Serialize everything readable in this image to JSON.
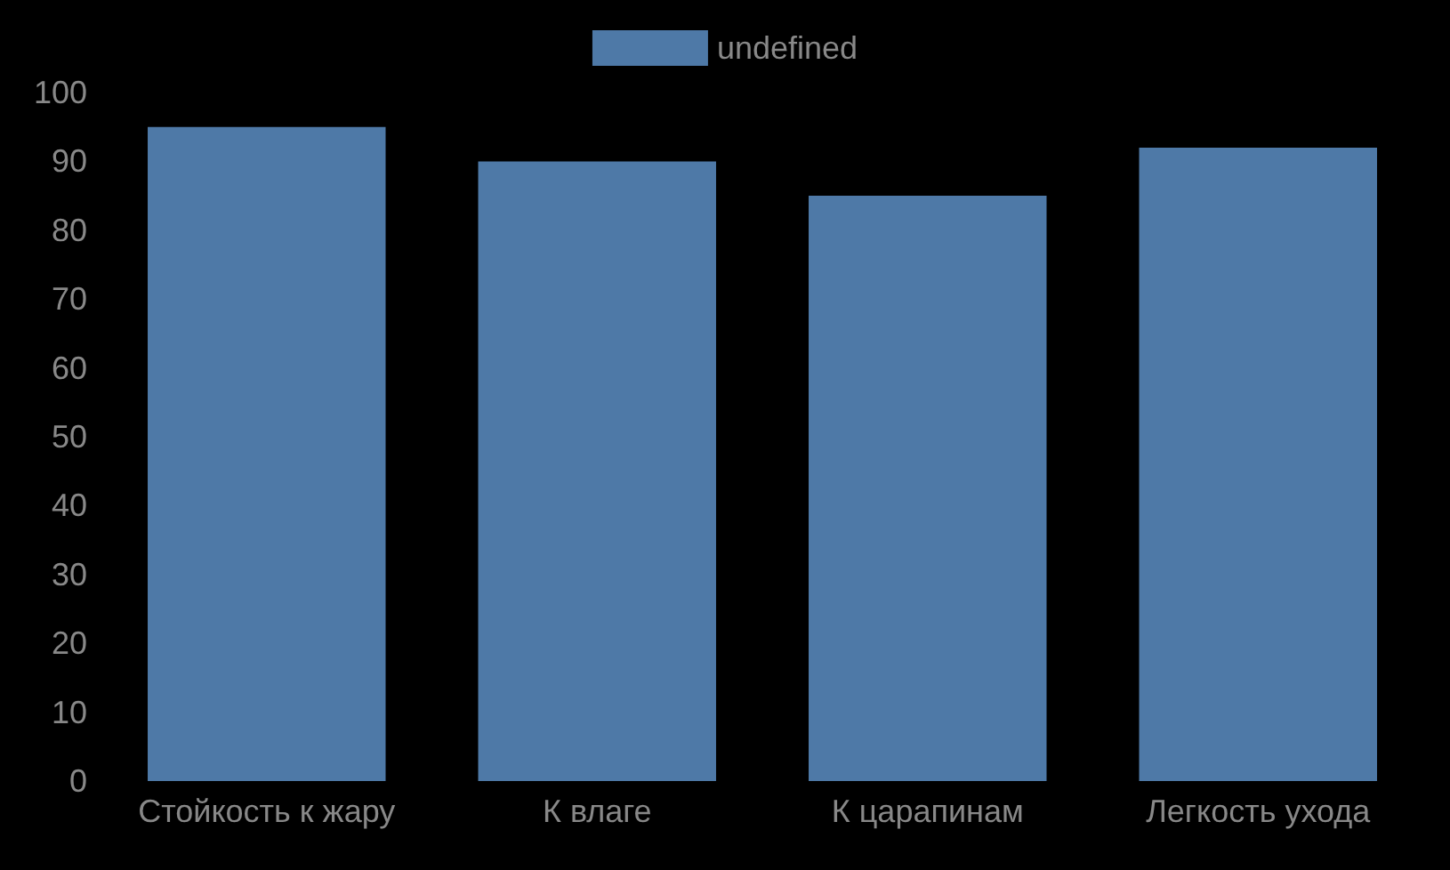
{
  "chart_data": {
    "type": "bar",
    "categories": [
      "Стойкость к жару",
      "К влаге",
      "К царапинам",
      "Легкость ухода"
    ],
    "series": [
      {
        "name": "undefined",
        "color": "#4e79a7",
        "values": [
          95,
          90,
          85,
          92
        ]
      }
    ],
    "ylim": [
      0,
      100
    ],
    "yticks": [
      0,
      10,
      20,
      30,
      40,
      50,
      60,
      70,
      80,
      90,
      100
    ],
    "grid": false,
    "legend": "top"
  }
}
